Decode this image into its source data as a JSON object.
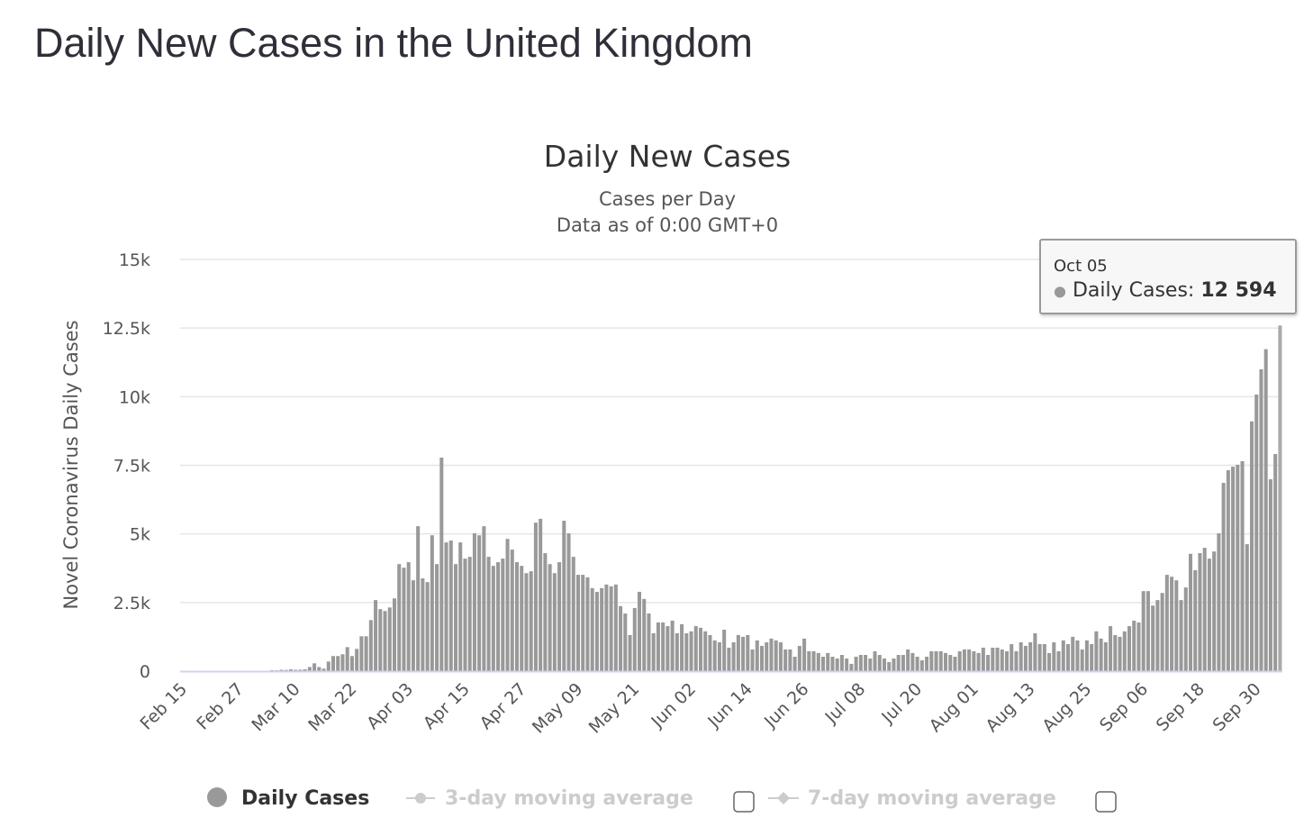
{
  "page": {
    "title": "Daily New Cases in the United Kingdom"
  },
  "tooltip": {
    "date": "Oct 05",
    "series": "Daily Cases:",
    "value": "12 594"
  },
  "legend": [
    {
      "label": "Daily Cases",
      "color": "#999999",
      "enabled": true
    },
    {
      "label": "3-day moving average",
      "color": "#cccccc",
      "enabled": false
    },
    {
      "label": "7-day moving average",
      "color": "#cccccc",
      "enabled": false
    }
  ],
  "colors": {
    "bar": "#999999",
    "bar_hover": "#aaaaaa",
    "grid": "#e6e6e6",
    "axis": "#ccd6eb"
  },
  "chart_data": {
    "type": "bar",
    "title": "Daily New Cases",
    "subtitle": [
      "Cases per Day",
      "Data as of 0:00 GMT+0"
    ],
    "xlabel": "",
    "ylabel": "Novel Coronavirus Daily Cases",
    "ylim": [
      0,
      15000
    ],
    "yticks": [
      0,
      2500,
      5000,
      7500,
      10000,
      12500,
      15000
    ],
    "ytick_labels": [
      "0",
      "2.5k",
      "5k",
      "7.5k",
      "10k",
      "12.5k",
      "15k"
    ],
    "x_tick_labels": [
      "Feb 15",
      "Feb 27",
      "Mar 10",
      "Mar 22",
      "Apr 03",
      "Apr 15",
      "Apr 27",
      "May 09",
      "May 21",
      "Jun 02",
      "Jun 14",
      "Jun 26",
      "Jul 08",
      "Jul 20",
      "Aug 01",
      "Aug 13",
      "Aug 25",
      "Sep 06",
      "Sep 18",
      "Sep 30"
    ],
    "x_tick_every_days": 12,
    "first_date": "Feb 15",
    "last_date": "Oct 05",
    "grid": true,
    "legend_position": "bottom",
    "series": [
      {
        "name": "Daily Cases",
        "values": [
          0,
          0,
          0,
          0,
          0,
          0,
          0,
          0,
          0,
          0,
          0,
          0,
          0,
          4,
          0,
          1,
          13,
          4,
          11,
          34,
          30,
          48,
          43,
          67,
          48,
          52,
          66,
          150,
          285,
          150,
          90,
          350,
          550,
          550,
          615,
          875,
          550,
          810,
          1270,
          1270,
          1860,
          2590,
          2260,
          2190,
          2320,
          2650,
          3900,
          3770,
          3970,
          3310,
          5280,
          3380,
          3245,
          4950,
          3900,
          7780,
          4690,
          4760,
          3900,
          4690,
          4100,
          4165,
          5020,
          4950,
          5280,
          4165,
          3835,
          3970,
          4100,
          4820,
          4430,
          3970,
          3835,
          3570,
          3640,
          5410,
          5550,
          4300,
          3900,
          3570,
          3970,
          5480,
          5020,
          4165,
          3510,
          3510,
          3420,
          3025,
          2890,
          3025,
          3155,
          3090,
          3155,
          2370,
          2100,
          1315,
          2300,
          2890,
          2630,
          2100,
          1380,
          1775,
          1775,
          1640,
          1840,
          1380,
          1710,
          1380,
          1450,
          1640,
          1580,
          1450,
          1315,
          1120,
          1050,
          1510,
          855,
          1050,
          1315,
          1250,
          1315,
          790,
          1120,
          920,
          1050,
          1185,
          1120,
          1050,
          790,
          790,
          525,
          920,
          1185,
          725,
          725,
          660,
          525,
          660,
          525,
          460,
          590,
          460,
          265,
          525,
          590,
          590,
          460,
          725,
          590,
          460,
          330,
          460,
          590,
          590,
          790,
          660,
          525,
          395,
          525,
          725,
          725,
          725,
          660,
          590,
          525,
          725,
          790,
          790,
          725,
          660,
          855,
          590,
          855,
          855,
          790,
          725,
          985,
          725,
          1050,
          920,
          1050,
          1380,
          985,
          985,
          660,
          1050,
          725,
          1120,
          985,
          1250,
          1120,
          790,
          1120,
          985,
          1450,
          1185,
          1050,
          1640,
          1315,
          1250,
          1450,
          1640,
          1840,
          1775,
          2915,
          2915,
          2390,
          2590,
          2850,
          3510,
          3440,
          3310,
          2590,
          3050,
          4275,
          3680,
          4300,
          4495,
          4100,
          4360,
          5020,
          6860,
          7320,
          7450,
          7520,
          7650,
          4625,
          9100,
          10080,
          11000,
          11730,
          6990,
          7910,
          12594
        ]
      }
    ]
  }
}
